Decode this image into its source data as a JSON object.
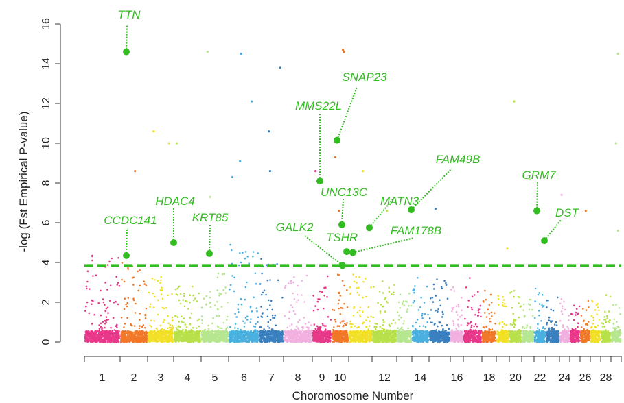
{
  "chart_data": {
    "type": "scatter",
    "xlabel": "Choromosome Number",
    "ylabel": "-log (Fst Empirical P-value)",
    "ylim": [
      0,
      16
    ],
    "yticks": [
      0,
      2,
      4,
      6,
      8,
      10,
      12,
      14,
      16
    ],
    "threshold": 3.85,
    "x_tick_labels": [
      "1",
      "2",
      "3",
      "4",
      "5",
      "6",
      "7",
      "8",
      "9",
      "10",
      "12",
      "14",
      "16",
      "18",
      "20",
      "22",
      "24",
      "26",
      "28"
    ],
    "chromosomes": [
      {
        "chr": 1,
        "color": "#e8388a",
        "maxY": 4.6
      },
      {
        "chr": 2,
        "color": "#f07828",
        "maxY": 4.1
      },
      {
        "chr": 3,
        "color": "#f2e028",
        "maxY": 3.3
      },
      {
        "chr": 4,
        "color": "#b8e04a",
        "maxY": 3.0
      },
      {
        "chr": 5,
        "color": "#b6e690",
        "maxY": 3.8
      },
      {
        "chr": 6,
        "color": "#4ab0e0",
        "maxY": 4.9
      },
      {
        "chr": 7,
        "color": "#3a80c0",
        "maxY": 4.2
      },
      {
        "chr": 8,
        "color": "#f2b0e0",
        "maxY": 3.4
      },
      {
        "chr": 9,
        "color": "#e8388a",
        "maxY": 3.6
      },
      {
        "chr": 10,
        "color": "#f07828",
        "maxY": 3.8
      },
      {
        "chr": 11,
        "color": "#f2e028",
        "maxY": 3.4
      },
      {
        "chr": 12,
        "color": "#b8e04a",
        "maxY": 3.2
      },
      {
        "chr": 13,
        "color": "#b6e690",
        "maxY": 2.6
      },
      {
        "chr": 14,
        "color": "#4ab0e0",
        "maxY": 3.5
      },
      {
        "chr": 15,
        "color": "#3a80c0",
        "maxY": 3.4
      },
      {
        "chr": 16,
        "color": "#f2b0e0",
        "maxY": 3.0
      },
      {
        "chr": 17,
        "color": "#e8388a",
        "maxY": 3.3
      },
      {
        "chr": 18,
        "color": "#f07828",
        "maxY": 2.8
      },
      {
        "chr": 19,
        "color": "#f2e028",
        "maxY": 2.4
      },
      {
        "chr": 20,
        "color": "#b8e04a",
        "maxY": 2.6
      },
      {
        "chr": 21,
        "color": "#b6e690",
        "maxY": 2.2
      },
      {
        "chr": 22,
        "color": "#4ab0e0",
        "maxY": 2.8
      },
      {
        "chr": 23,
        "color": "#3a80c0",
        "maxY": 2.4
      },
      {
        "chr": 24,
        "color": "#f2b0e0",
        "maxY": 2.2
      },
      {
        "chr": 25,
        "color": "#e8388a",
        "maxY": 2.0
      },
      {
        "chr": 26,
        "color": "#f07828",
        "maxY": 2.4
      },
      {
        "chr": 27,
        "color": "#f2e028",
        "maxY": 2.2
      },
      {
        "chr": 28,
        "color": "#b8e04a",
        "maxY": 2.6
      },
      {
        "chr": 29,
        "color": "#b6e690",
        "maxY": 1.9
      }
    ],
    "highlighted_genes": [
      {
        "name": "TTN",
        "chr": 2,
        "y": 14.6
      },
      {
        "name": "CCDC141",
        "chr": 2,
        "y": 4.35
      },
      {
        "name": "HDAC4",
        "chr": 3,
        "y": 5.0
      },
      {
        "name": "KRT85",
        "chr": 5,
        "y": 4.45
      },
      {
        "name": "MMS22L",
        "chr": 9,
        "y": 8.1
      },
      {
        "name": "SNAP23",
        "chr": 10,
        "y": 10.15
      },
      {
        "name": "UNC13C",
        "chr": 10,
        "y": 5.9
      },
      {
        "name": "GALK2",
        "chr": 10,
        "y": 3.85
      },
      {
        "name": "TSHR",
        "chr": 10,
        "y": 4.55
      },
      {
        "name": "FAM178B",
        "chr": 11,
        "y": 4.5
      },
      {
        "name": "MATN3",
        "chr": 11,
        "y": 5.75
      },
      {
        "name": "FAM49B",
        "chr": 14,
        "y": 6.65
      },
      {
        "name": "GRM7",
        "chr": 22,
        "y": 6.6
      },
      {
        "name": "DST",
        "chr": 23,
        "y": 5.1
      }
    ],
    "outliers": [
      {
        "chr": 2,
        "y": 8.6
      },
      {
        "chr": 3,
        "y": 10.6
      },
      {
        "chr": 3,
        "y": 10.0
      },
      {
        "chr": 4,
        "y": 10.0
      },
      {
        "chr": 5,
        "y": 7.3
      },
      {
        "chr": 5,
        "y": 14.6
      },
      {
        "chr": 6,
        "y": 8.3
      },
      {
        "chr": 6,
        "y": 14.5
      },
      {
        "chr": 6,
        "y": 12.1
      },
      {
        "chr": 6,
        "y": 9.1
      },
      {
        "chr": 7,
        "y": 13.8
      },
      {
        "chr": 7,
        "y": 10.6
      },
      {
        "chr": 7,
        "y": 8.6
      },
      {
        "chr": 9,
        "y": 8.6
      },
      {
        "chr": 10,
        "y": 14.7
      },
      {
        "chr": 10,
        "y": 14.6
      },
      {
        "chr": 10,
        "y": 9.3
      },
      {
        "chr": 10,
        "y": 6.6
      },
      {
        "chr": 11,
        "y": 8.6
      },
      {
        "chr": 12,
        "y": 6.6
      },
      {
        "chr": 15,
        "y": 6.7
      },
      {
        "chr": 19,
        "y": 4.7
      },
      {
        "chr": 20,
        "y": 12.1
      },
      {
        "chr": 21,
        "y": 8.2
      },
      {
        "chr": 24,
        "y": 7.4
      },
      {
        "chr": 26,
        "y": 6.6
      },
      {
        "chr": 29,
        "y": 14.5
      },
      {
        "chr": 29,
        "y": 10.0
      },
      {
        "chr": 29,
        "y": 5.6
      }
    ],
    "colors": {
      "highlight": "#33bb22",
      "threshold": "#33bb22",
      "axis": "#333333"
    }
  }
}
